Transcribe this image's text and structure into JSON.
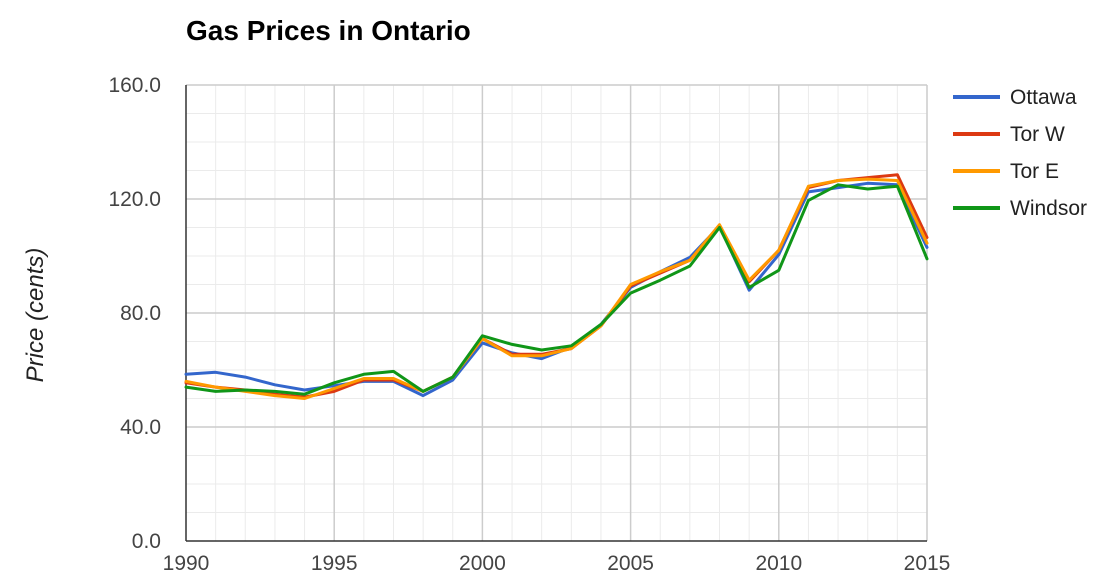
{
  "chart_data": {
    "type": "line",
    "title": "Gas Prices in Ontario",
    "xlabel": "",
    "ylabel": "Price (cents)",
    "xlim": [
      1990,
      2015
    ],
    "ylim": [
      0,
      160
    ],
    "x_ticks": [
      "1990",
      "1995",
      "2000",
      "2005",
      "2010",
      "2015"
    ],
    "y_ticks": [
      "0.0",
      "40.0",
      "80.0",
      "120.0",
      "160.0"
    ],
    "grid": true,
    "legend_position": "right",
    "x": [
      1990,
      1991,
      1992,
      1993,
      1994,
      1995,
      1996,
      1997,
      1998,
      1999,
      2000,
      2001,
      2002,
      2003,
      2004,
      2005,
      2006,
      2007,
      2008,
      2009,
      2010,
      2011,
      2012,
      2013,
      2014,
      2015
    ],
    "series": [
      {
        "name": "Ottawa",
        "color": "#3366cc",
        "values": [
          58.5,
          59.2,
          57.5,
          54.8,
          53.0,
          54.5,
          56.0,
          56.0,
          51.0,
          56.5,
          69.5,
          66.0,
          64.0,
          68.0,
          76.0,
          89.0,
          94.5,
          99.5,
          110.5,
          88.0,
          100.5,
          122.5,
          124.0,
          125.5,
          125.0,
          103.0
        ]
      },
      {
        "name": "Tor W",
        "color": "#dc3912",
        "values": [
          55.5,
          54.0,
          53.0,
          51.5,
          50.5,
          52.5,
          56.5,
          56.5,
          52.5,
          57.5,
          71.0,
          65.5,
          65.5,
          67.5,
          75.5,
          89.5,
          94.0,
          98.5,
          110.5,
          91.0,
          102.0,
          124.0,
          126.5,
          127.5,
          128.5,
          106.5
        ]
      },
      {
        "name": "Tor E",
        "color": "#ff9900",
        "values": [
          56.0,
          54.0,
          52.5,
          51.0,
          50.0,
          53.5,
          57.0,
          57.0,
          52.5,
          57.5,
          71.0,
          65.0,
          65.0,
          67.5,
          75.5,
          90.0,
          94.5,
          98.5,
          111.0,
          91.5,
          102.0,
          124.5,
          126.5,
          127.0,
          126.5,
          104.5
        ]
      },
      {
        "name": "Windsor",
        "color": "#109618",
        "values": [
          54.0,
          52.5,
          53.0,
          52.5,
          51.5,
          55.5,
          58.5,
          59.5,
          52.5,
          57.5,
          72.0,
          69.0,
          67.0,
          68.5,
          76.0,
          87.0,
          91.5,
          96.5,
          110.0,
          89.0,
          95.0,
          119.5,
          125.0,
          123.5,
          124.5,
          99.0
        ]
      }
    ]
  }
}
